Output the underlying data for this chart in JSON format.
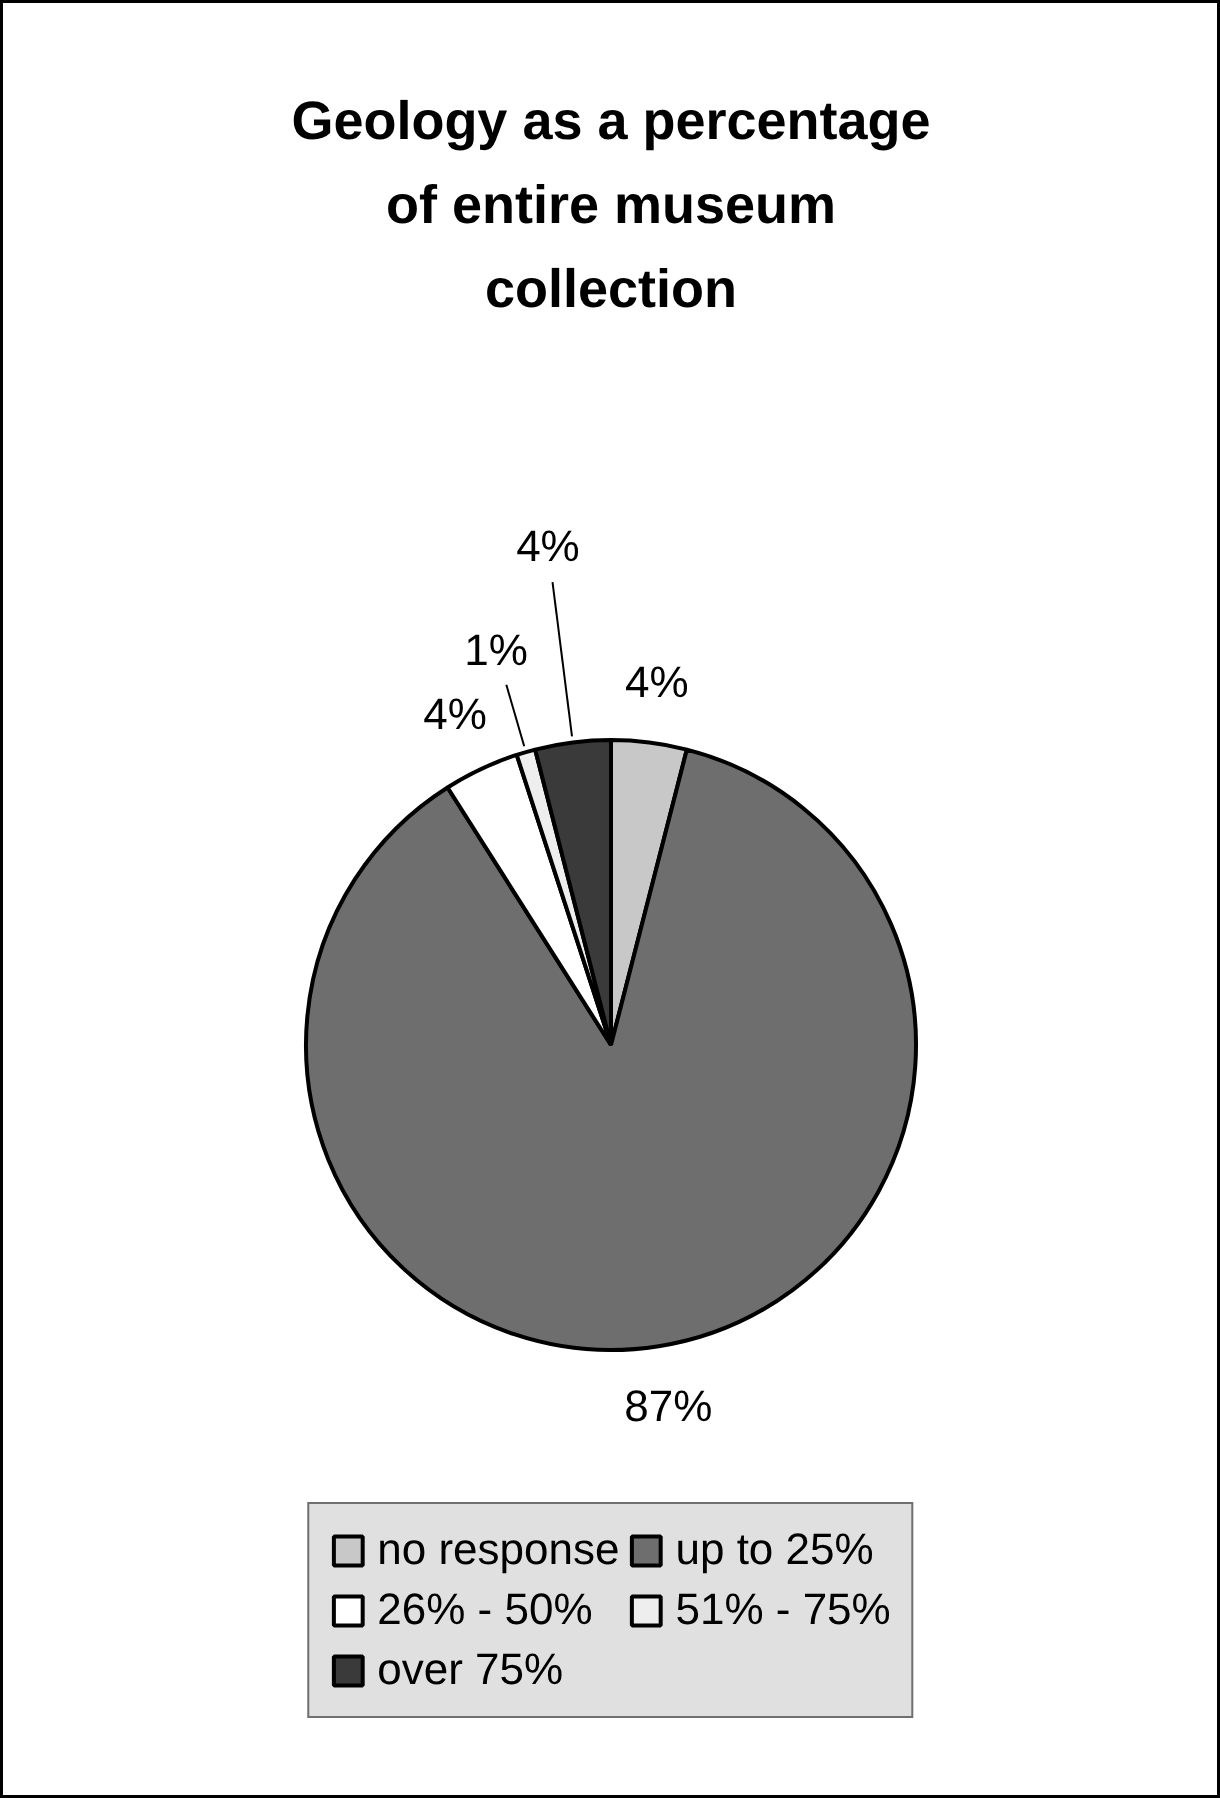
{
  "chart_data": {
    "type": "pie",
    "title": "Geology as a percentage of entire museum collection",
    "categories": [
      "no response",
      "up to 25%",
      "26% - 50%",
      "51% - 75%",
      "over 75%"
    ],
    "values": [
      4,
      87,
      4,
      1,
      4
    ],
    "colors": [
      "#c8c8c8",
      "#6e6e6e",
      "#ffffff",
      "#eeeeee",
      "#3a3a3a"
    ],
    "value_labels": [
      "4%",
      "87%",
      "4%",
      "1%",
      "4%"
    ],
    "legend": "bottom"
  }
}
